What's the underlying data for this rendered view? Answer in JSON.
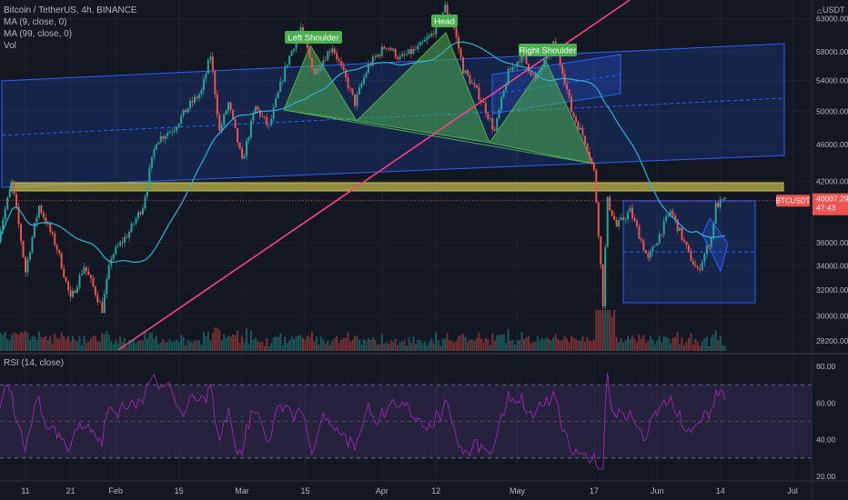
{
  "header": {
    "symbol_line": "Bitcoin / TetherUS, 4h, BINANCE",
    "ma9_label": "MA (9, close, 0)",
    "ma99_label": "MA (99, close, 0)",
    "vol_label": "Vol",
    "currency": "USDT"
  },
  "rsi": {
    "label": "RSI (14, close)"
  },
  "price_tag": {
    "ticker": "BTCUSDT",
    "value": "40007.29",
    "countdown": "47:43"
  },
  "colors": {
    "background": "#131722",
    "up": "#26a69a",
    "down": "#ef5350",
    "channel": "#2962ff",
    "pattern": "#4caf50",
    "trendline": "#ff4081",
    "support_zone": "#c9c14b",
    "rsi_line": "#9c27b0",
    "ma_line": "#29b6d6"
  },
  "annotations": {
    "left_shoulder": "Left Shoulder",
    "head": "Head",
    "right_shoulder": "Right Shoulder"
  },
  "chart_data": {
    "type": "candlestick",
    "x_axis_ticks": [
      "11",
      "21",
      "Feb",
      "15",
      "Mar",
      "15",
      "Apr",
      "12",
      "May",
      "17",
      "Jun",
      "14",
      "Jul"
    ],
    "y_axis_ticks": [
      63000,
      58000,
      54000,
      50000,
      46000,
      42000,
      36000,
      34000,
      32000,
      30000,
      28200
    ],
    "ylim": [
      27500,
      66000
    ],
    "rsi_ticks": [
      80.0,
      60.0,
      40.0,
      20.0
    ],
    "rsi_ylim": [
      18,
      86
    ],
    "rsi_levels": [
      70,
      50,
      30
    ],
    "price_path": [
      {
        "x": "Jan 05",
        "y": 36500
      },
      {
        "x": "Jan 08",
        "y": 41800
      },
      {
        "x": "Jan 11",
        "y": 33500
      },
      {
        "x": "Jan 14",
        "y": 39500
      },
      {
        "x": "Jan 18",
        "y": 35500
      },
      {
        "x": "Jan 21",
        "y": 31200
      },
      {
        "x": "Jan 24",
        "y": 34000
      },
      {
        "x": "Jan 28",
        "y": 30500
      },
      {
        "x": "Jan 30",
        "y": 34800
      },
      {
        "x": "Feb 03",
        "y": 37000
      },
      {
        "x": "Feb 06",
        "y": 39500
      },
      {
        "x": "Feb 09",
        "y": 46500
      },
      {
        "x": "Feb 13",
        "y": 48000
      },
      {
        "x": "Feb 16",
        "y": 50500
      },
      {
        "x": "Feb 19",
        "y": 52500
      },
      {
        "x": "Feb 21",
        "y": 57500
      },
      {
        "x": "Feb 23",
        "y": 47500
      },
      {
        "x": "Feb 25",
        "y": 51000
      },
      {
        "x": "Feb 28",
        "y": 44000
      },
      {
        "x": "Mar 03",
        "y": 50500
      },
      {
        "x": "Mar 06",
        "y": 48000
      },
      {
        "x": "Mar 10",
        "y": 56500
      },
      {
        "x": "Mar 13",
        "y": 61500
      },
      {
        "x": "Mar 16",
        "y": 55000
      },
      {
        "x": "Mar 20",
        "y": 58800
      },
      {
        "x": "Mar 25",
        "y": 51000
      },
      {
        "x": "Mar 28",
        "y": 56000
      },
      {
        "x": "Apr 01",
        "y": 59000
      },
      {
        "x": "Apr 04",
        "y": 57000
      },
      {
        "x": "Apr 08",
        "y": 58500
      },
      {
        "x": "Apr 11",
        "y": 60500
      },
      {
        "x": "Apr 14",
        "y": 64800
      },
      {
        "x": "Apr 16",
        "y": 61500
      },
      {
        "x": "Apr 18",
        "y": 55500
      },
      {
        "x": "Apr 22",
        "y": 51500
      },
      {
        "x": "Apr 25",
        "y": 47500
      },
      {
        "x": "Apr 28",
        "y": 55000
      },
      {
        "x": "May 01",
        "y": 57500
      },
      {
        "x": "May 04",
        "y": 54000
      },
      {
        "x": "May 08",
        "y": 59000
      },
      {
        "x": "May 10",
        "y": 55500
      },
      {
        "x": "May 12",
        "y": 50000
      },
      {
        "x": "May 15",
        "y": 46500
      },
      {
        "x": "May 17",
        "y": 43000
      },
      {
        "x": "May 19",
        "y": 31000
      },
      {
        "x": "May 20",
        "y": 40000
      },
      {
        "x": "May 22",
        "y": 37500
      },
      {
        "x": "May 25",
        "y": 39000
      },
      {
        "x": "May 29",
        "y": 34500
      },
      {
        "x": "Jun 03",
        "y": 39000
      },
      {
        "x": "Jun 07",
        "y": 35000
      },
      {
        "x": "Jun 09",
        "y": 33500
      },
      {
        "x": "Jun 12",
        "y": 36500
      },
      {
        "x": "Jun 13",
        "y": 39500
      },
      {
        "x": "Jun 15",
        "y": 40000
      }
    ],
    "current_price": 40007.29
  }
}
